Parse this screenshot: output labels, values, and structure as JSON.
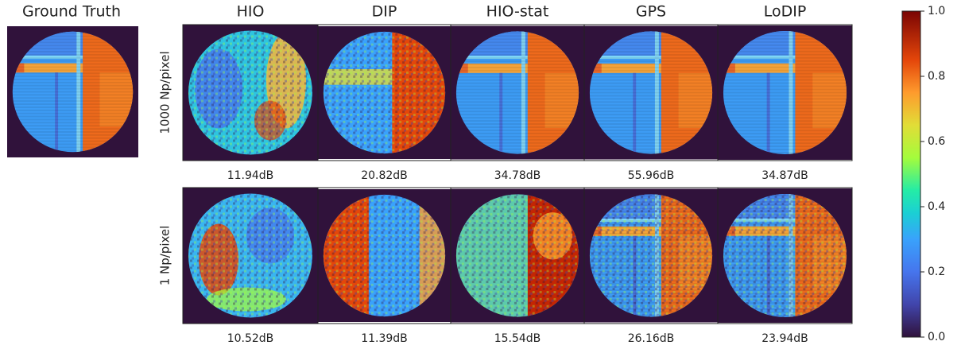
{
  "ground_truth_title": "Ground Truth",
  "columns": [
    "HIO",
    "DIP",
    "HIO-stat",
    "GPS",
    "LoDIP"
  ],
  "rows": [
    {
      "label": "1000 Np/pixel",
      "psnr": [
        "11.94dB",
        "20.82dB",
        "34.78dB",
        "55.96dB",
        "34.87dB"
      ]
    },
    {
      "label": "1 Np/pixel",
      "psnr": [
        "10.52dB",
        "11.39dB",
        "15.54dB",
        "26.16dB",
        "23.94dB"
      ]
    }
  ],
  "colorbar": {
    "lim": [
      0,
      1
    ],
    "ticks": [
      {
        "value": 0,
        "label": "0.0"
      },
      {
        "value": 0.2,
        "label": "0.2"
      },
      {
        "value": 0.4,
        "label": "0.4"
      },
      {
        "value": 0.6,
        "label": "0.6"
      },
      {
        "value": 0.8,
        "label": "0.8"
      },
      {
        "value": 1,
        "label": "1.0"
      }
    ]
  }
}
